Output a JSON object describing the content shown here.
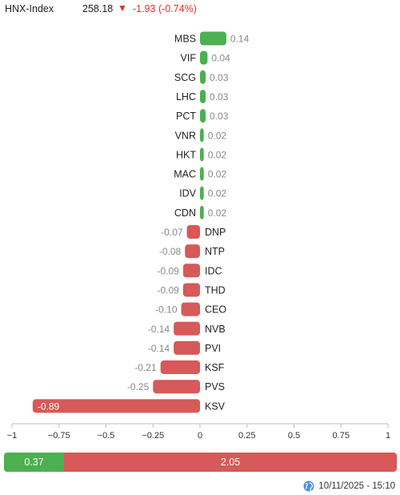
{
  "header": {
    "index_name": "HNX-Index",
    "index_value": "258.18",
    "direction_icon": "triangle-down-icon",
    "index_change": "-1.93 (-0.74%)"
  },
  "chart_data": {
    "type": "bar",
    "orientation": "horizontal",
    "categories": [
      "MBS",
      "VIF",
      "SCG",
      "LHC",
      "PCT",
      "VNR",
      "HKT",
      "MAC",
      "IDV",
      "CDN",
      "DNP",
      "NTP",
      "IDC",
      "THD",
      "CEO",
      "NVB",
      "PVI",
      "KSF",
      "PVS",
      "KSV"
    ],
    "values": [
      0.14,
      0.04,
      0.03,
      0.03,
      0.03,
      0.02,
      0.02,
      0.02,
      0.02,
      0.02,
      -0.07,
      -0.08,
      -0.09,
      -0.09,
      -0.1,
      -0.14,
      -0.14,
      -0.21,
      -0.25,
      -0.89
    ],
    "value_labels": [
      "0.14",
      "0.04",
      "0.03",
      "0.03",
      "0.03",
      "0.02",
      "0.02",
      "0.02",
      "0.02",
      "0.02",
      "-0.07",
      "-0.08",
      "-0.09",
      "-0.09",
      "-0.10",
      "-0.14",
      "-0.14",
      "-0.21",
      "-0.25",
      "-0.89"
    ],
    "xlim": [
      -1,
      1
    ],
    "ticks": [
      -1,
      -0.75,
      -0.5,
      -0.25,
      0,
      0.25,
      0.5,
      0.75,
      1
    ],
    "tick_labels": [
      "−1",
      "−0.75",
      "−0.5",
      "−0.25",
      "0",
      "0.25",
      "0.5",
      "0.75",
      "1"
    ],
    "title": "",
    "xlabel": "",
    "ylabel": "",
    "grid": false,
    "legend": "none",
    "colors": {
      "positive": "#4caf50",
      "negative": "#d75959"
    }
  },
  "summary_bar": {
    "up_value": "0.37",
    "down_value": "2.05",
    "up_fraction": 0.153,
    "up_color": "#4caf50",
    "down_color": "#d75959"
  },
  "footer": {
    "timestamp_icon": "globe-icon",
    "timestamp": "10/11/2025 - 15:10"
  }
}
